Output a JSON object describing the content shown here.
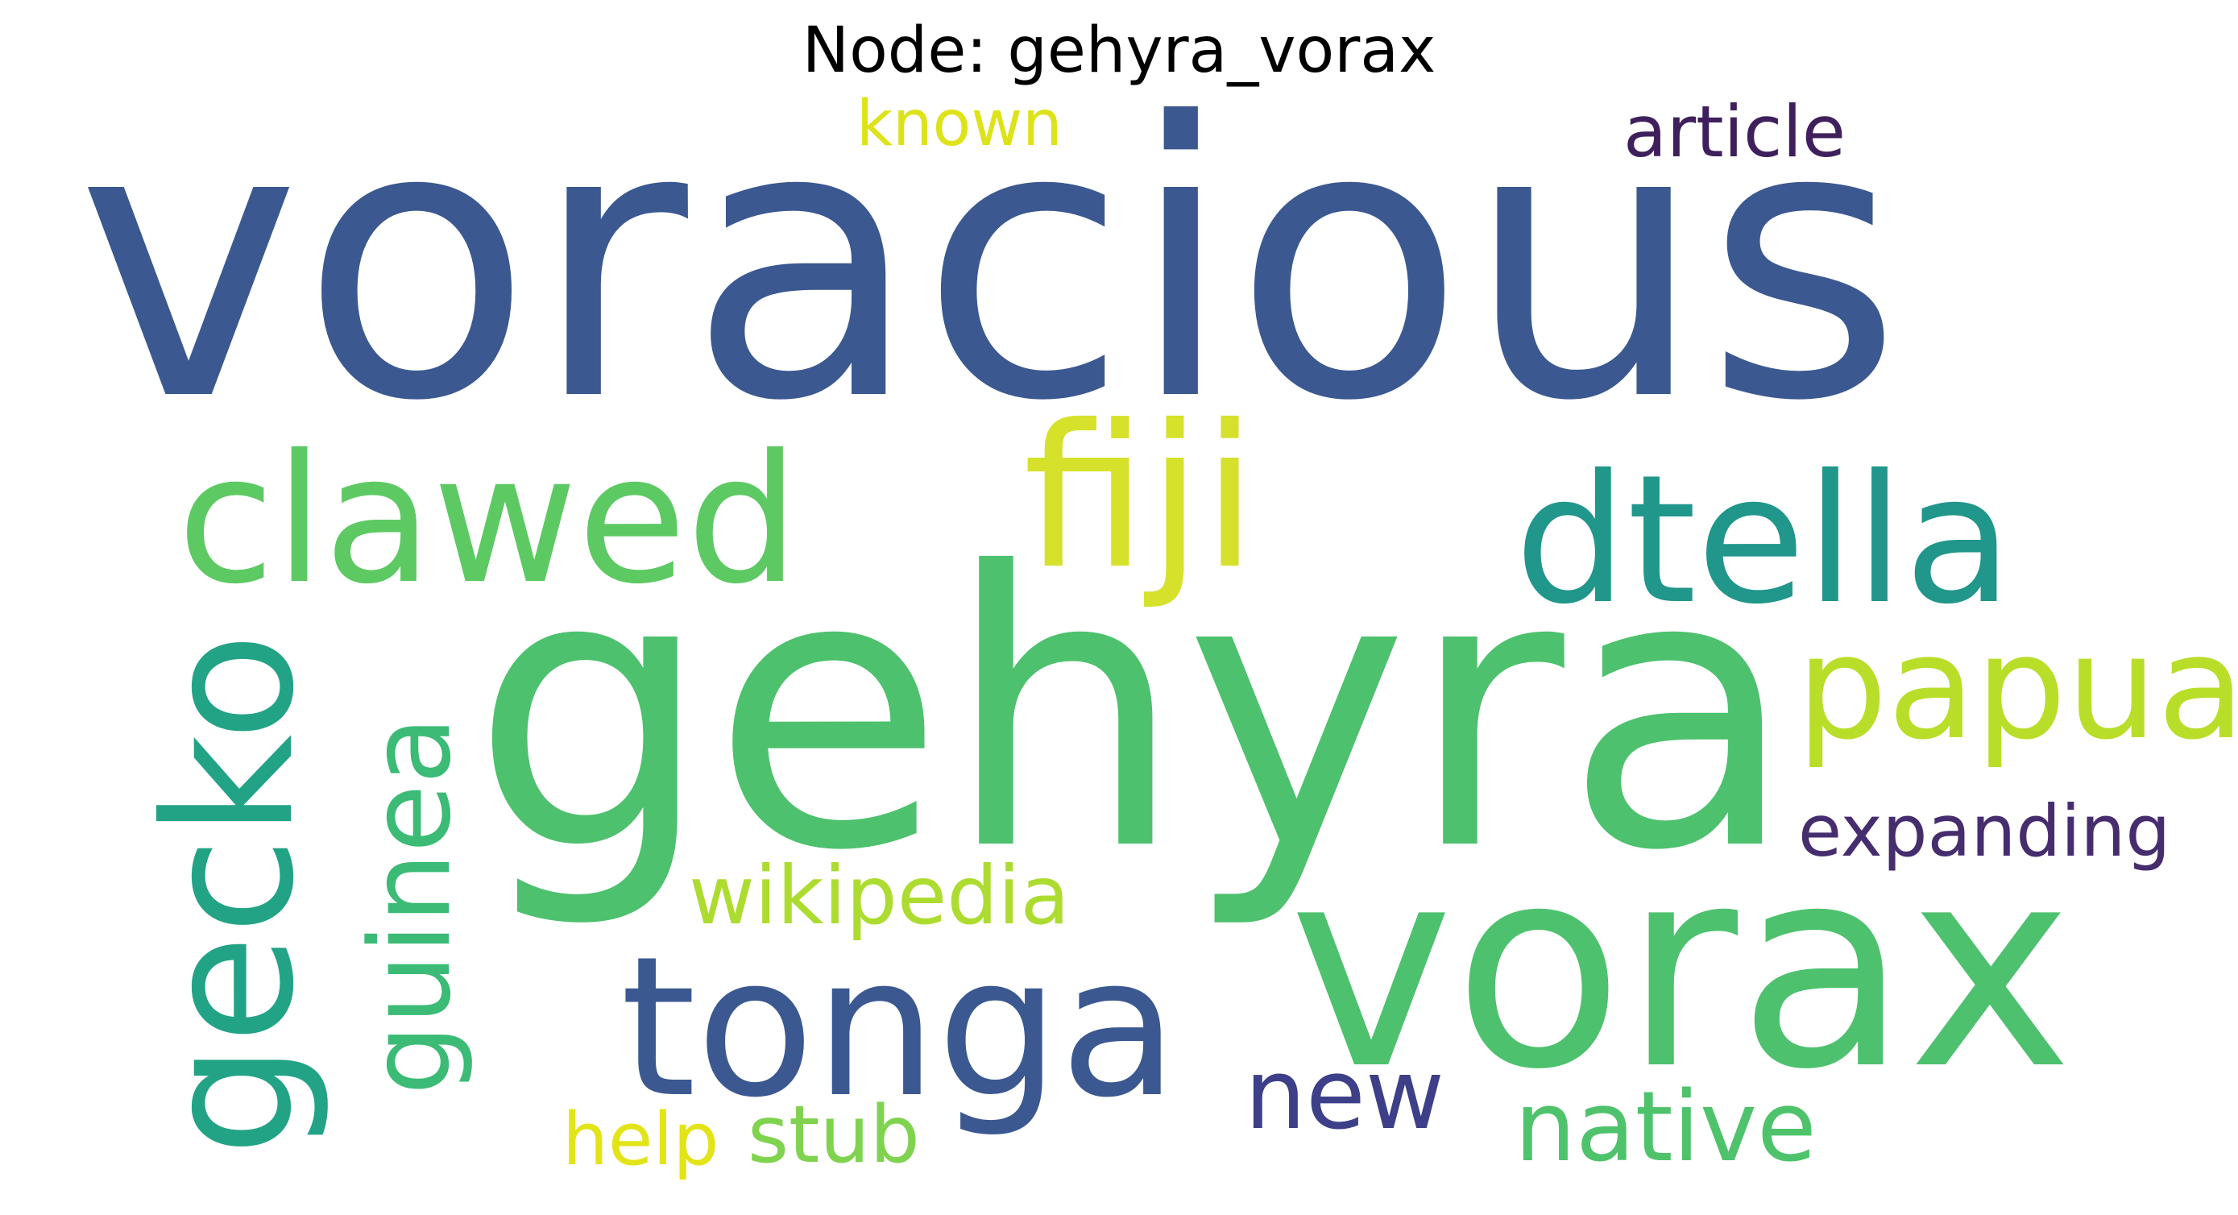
{
  "title": "Node: gehyra_vorax",
  "words": [
    {
      "id": "voracious",
      "text": "voracious",
      "color": "#3b5890"
    },
    {
      "id": "gehyra",
      "text": "gehyra",
      "color": "#4dc16e"
    },
    {
      "id": "vorax",
      "text": "vorax",
      "color": "#4dc16e"
    },
    {
      "id": "fiji",
      "text": "fiji",
      "color": "#d6e12c"
    },
    {
      "id": "clawed",
      "text": "clawed",
      "color": "#5dc963"
    },
    {
      "id": "dtella",
      "text": "dtella",
      "color": "#21968b"
    },
    {
      "id": "gecko",
      "text": "gecko",
      "color": "#22a386"
    },
    {
      "id": "tonga",
      "text": "tonga",
      "color": "#3b5890"
    },
    {
      "id": "papua",
      "text": "papua",
      "color": "#b8de29"
    },
    {
      "id": "guinea",
      "text": "guinea",
      "color": "#3bbb75"
    },
    {
      "id": "wikipedia",
      "text": "wikipedia",
      "color": "#addc30"
    },
    {
      "id": "expanding",
      "text": "expanding",
      "color": "#462d6e"
    },
    {
      "id": "article",
      "text": "article",
      "color": "#3f1f5c"
    },
    {
      "id": "known",
      "text": "known",
      "color": "#dde318"
    },
    {
      "id": "new",
      "text": "new",
      "color": "#3d3f88"
    },
    {
      "id": "native",
      "text": "native",
      "color": "#4ec36b"
    },
    {
      "id": "stub",
      "text": "stub",
      "color": "#7fd34e"
    },
    {
      "id": "help",
      "text": "help",
      "color": "#e2e418"
    }
  ]
}
